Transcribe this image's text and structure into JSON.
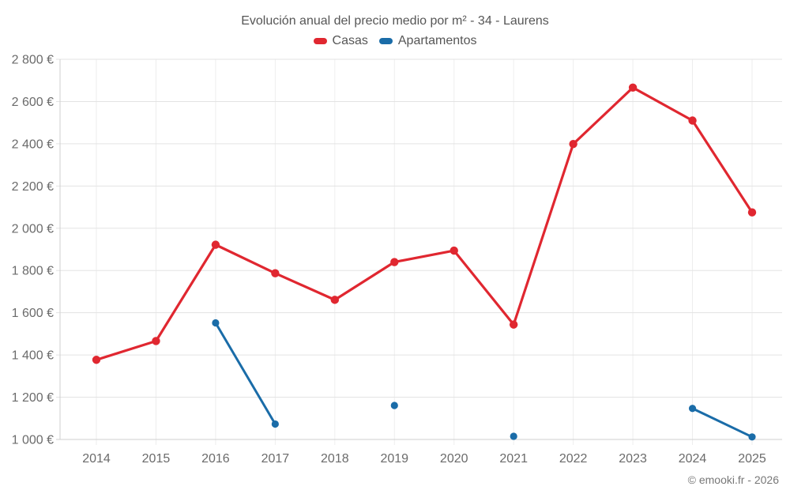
{
  "chart_data": {
    "type": "line",
    "title": "Evolución anual del precio medio por m² - 34 - Laurens",
    "categories": [
      "2014",
      "2015",
      "2016",
      "2017",
      "2018",
      "2019",
      "2020",
      "2021",
      "2022",
      "2023",
      "2024",
      "2025"
    ],
    "series": [
      {
        "name": "Casas",
        "color": "#e02730",
        "values": [
          1377,
          1466,
          1922,
          1787,
          1661,
          1840,
          1894,
          1544,
          2399,
          2666,
          2510,
          2075
        ]
      },
      {
        "name": "Apartamentos",
        "color": "#1a6ca8",
        "values": [
          null,
          null,
          1552,
          1073,
          null,
          1161,
          null,
          1015,
          null,
          null,
          1147,
          1012
        ]
      }
    ],
    "y_ticks": [
      {
        "value": 1000,
        "label": "1 000 €"
      },
      {
        "value": 1200,
        "label": "1 200 €"
      },
      {
        "value": 1400,
        "label": "1 400 €"
      },
      {
        "value": 1600,
        "label": "1 600 €"
      },
      {
        "value": 1800,
        "label": "1 800 €"
      },
      {
        "value": 2000,
        "label": "2 000 €"
      },
      {
        "value": 2200,
        "label": "2 200 €"
      },
      {
        "value": 2400,
        "label": "2 400 €"
      },
      {
        "value": 2600,
        "label": "2 600 €"
      },
      {
        "value": 2800,
        "label": "2 800 €"
      }
    ],
    "ylim": [
      1000,
      2800
    ],
    "grid": true,
    "legend_position": "top",
    "xlabel": "",
    "ylabel": ""
  },
  "footer": {
    "credit": "© emooki.fr - 2026"
  },
  "style": {
    "hgrid_color": "#e3e3e3",
    "vgrid_color": "#eeeeee",
    "axis_color": "#cfcfcf"
  }
}
